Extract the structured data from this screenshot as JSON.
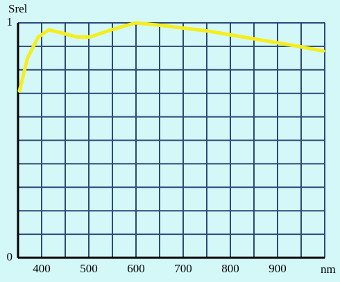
{
  "chart_data": {
    "type": "line",
    "y_label": "Srel",
    "x_label": "nm",
    "xlim": [
      350,
      1000
    ],
    "ylim": [
      0,
      1
    ],
    "xticks": [
      400,
      500,
      600,
      700,
      800,
      900
    ],
    "yticks": [
      0,
      1
    ],
    "xgrid": [
      350,
      400,
      450,
      500,
      550,
      600,
      650,
      700,
      750,
      800,
      850,
      900,
      950,
      1000
    ],
    "ygrid": [
      0,
      0.1,
      0.2,
      0.3,
      0.4,
      0.5,
      0.6,
      0.7,
      0.8,
      0.9,
      1
    ],
    "grid": true,
    "series": [
      {
        "color": "#f5ee1e",
        "x": [
          353,
          370,
          393,
          415,
          437,
          474,
          503,
          547,
          599,
          650,
          753,
          856,
          944,
          997
        ],
        "values": [
          0.71,
          0.85,
          0.94,
          0.97,
          0.96,
          0.94,
          0.94,
          0.97,
          1.0,
          0.99,
          0.965,
          0.93,
          0.9,
          0.88
        ]
      }
    ]
  }
}
